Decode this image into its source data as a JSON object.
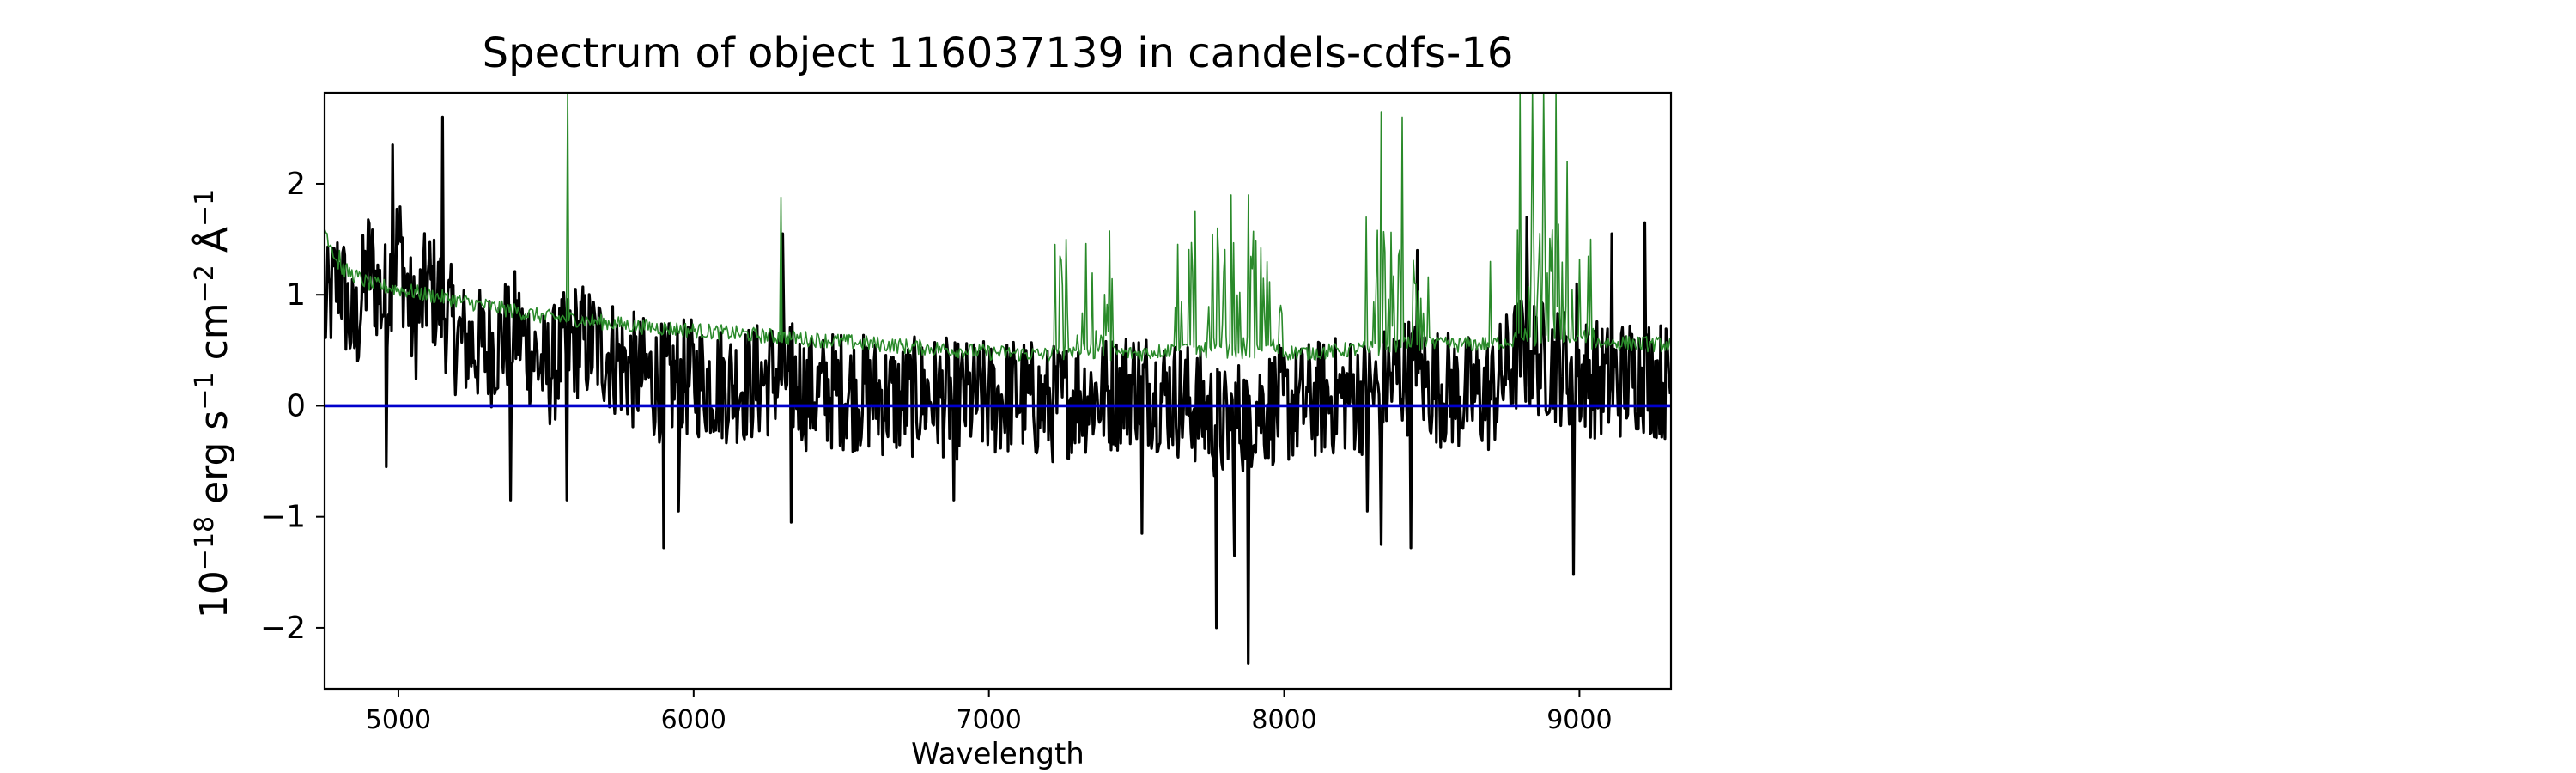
{
  "chart_data": {
    "type": "line",
    "title": "Spectrum of object 116037139 in candels-cdfs-16",
    "xlabel": "Wavelength",
    "ylabel": {
      "prefix": "10",
      "exp1": "−18",
      "erg": " erg s",
      "exp2": "−1",
      "cm": " cm",
      "exp3": "−2",
      "ang": " Å",
      "exp4": "−1"
    },
    "xlim": [
      4750,
      9310
    ],
    "ylim": [
      -2.55,
      2.82
    ],
    "xticks": [
      5000,
      6000,
      7000,
      8000,
      9000
    ],
    "yticks": [
      -2,
      -1,
      0,
      1,
      2
    ],
    "xtick_labels": [
      "5000",
      "6000",
      "7000",
      "8000",
      "9000"
    ],
    "ytick_labels": [
      "−2",
      "−1",
      "0",
      "1",
      "2"
    ],
    "grid": false,
    "series": [
      {
        "role": "flux",
        "color": "#000000",
        "points": [
          [
            4750,
            0.8
          ],
          [
            4800,
            1.2
          ],
          [
            4850,
            0.6
          ],
          [
            4900,
            1.3
          ],
          [
            4950,
            0.9
          ],
          [
            5000,
            1.5
          ],
          [
            5050,
            0.7
          ],
          [
            5100,
            1.1
          ],
          [
            5150,
            0.9
          ],
          [
            5200,
            0.6
          ],
          [
            5300,
            0.5
          ],
          [
            5400,
            0.7
          ],
          [
            5500,
            0.3
          ],
          [
            5600,
            0.6
          ],
          [
            5700,
            0.5
          ],
          [
            5800,
            0.3
          ],
          [
            5900,
            0.2
          ],
          [
            6000,
            0.25
          ],
          [
            6100,
            0.2
          ],
          [
            6200,
            0.2
          ],
          [
            6300,
            0.3
          ],
          [
            6400,
            0.1
          ],
          [
            6500,
            0.15
          ],
          [
            6600,
            0.1
          ],
          [
            6700,
            0.05
          ],
          [
            6800,
            0.1
          ],
          [
            6900,
            0.05
          ],
          [
            7000,
            0.05
          ],
          [
            7100,
            0.1
          ],
          [
            7200,
            0.0
          ],
          [
            7300,
            0.1
          ],
          [
            7400,
            0.1
          ],
          [
            7500,
            0.2
          ],
          [
            7600,
            0.1
          ],
          [
            7700,
            0.0
          ],
          [
            7800,
            -0.2
          ],
          [
            7900,
            0.0
          ],
          [
            8000,
            0.0
          ],
          [
            8100,
            0.05
          ],
          [
            8200,
            0.1
          ],
          [
            8300,
            0.1
          ],
          [
            8400,
            0.3
          ],
          [
            8500,
            0.2
          ],
          [
            8600,
            0.1
          ],
          [
            8700,
            0.1
          ],
          [
            8800,
            0.5
          ],
          [
            8900,
            0.4
          ],
          [
            9000,
            0.3
          ],
          [
            9100,
            0.2
          ],
          [
            9200,
            0.3
          ],
          [
            9310,
            0.2
          ]
        ],
        "spikes": [
          [
            4980,
            2.35
          ],
          [
            5150,
            2.6
          ],
          [
            4960,
            -0.55
          ],
          [
            5380,
            -0.85
          ],
          [
            5570,
            -0.85
          ],
          [
            5900,
            -1.28
          ],
          [
            5950,
            -0.95
          ],
          [
            6300,
            1.55
          ],
          [
            6330,
            -1.05
          ],
          [
            6880,
            -0.85
          ],
          [
            7520,
            -1.15
          ],
          [
            7770,
            -2.0
          ],
          [
            7880,
            -2.32
          ],
          [
            7830,
            -1.35
          ],
          [
            8280,
            -0.95
          ],
          [
            8330,
            -1.25
          ],
          [
            8430,
            -1.28
          ],
          [
            8450,
            1.4
          ],
          [
            8820,
            1.7
          ],
          [
            8980,
            -1.52
          ],
          [
            8990,
            1.1
          ],
          [
            9110,
            1.55
          ],
          [
            9220,
            1.65
          ],
          [
            9240,
            -0.25
          ]
        ]
      },
      {
        "role": "model",
        "color": "#2a8a2a",
        "points": [
          [
            4750,
            1.6
          ],
          [
            4800,
            1.25
          ],
          [
            4900,
            1.1
          ],
          [
            5000,
            1.05
          ],
          [
            5100,
            1.0
          ],
          [
            5200,
            0.95
          ],
          [
            5300,
            0.9
          ],
          [
            5400,
            0.85
          ],
          [
            5500,
            0.8
          ],
          [
            5600,
            0.78
          ],
          [
            5700,
            0.75
          ],
          [
            5800,
            0.72
          ],
          [
            5900,
            0.7
          ],
          [
            6000,
            0.68
          ],
          [
            6100,
            0.66
          ],
          [
            6200,
            0.64
          ],
          [
            6300,
            0.62
          ],
          [
            6400,
            0.6
          ],
          [
            6500,
            0.58
          ],
          [
            6600,
            0.56
          ],
          [
            6700,
            0.54
          ],
          [
            6800,
            0.52
          ],
          [
            6900,
            0.5
          ],
          [
            7000,
            0.48
          ],
          [
            7100,
            0.47
          ],
          [
            7200,
            0.46
          ],
          [
            7300,
            0.5
          ],
          [
            7400,
            0.48
          ],
          [
            7500,
            0.47
          ],
          [
            7600,
            0.5
          ],
          [
            7700,
            0.5
          ],
          [
            7800,
            0.5
          ],
          [
            7900,
            0.49
          ],
          [
            8000,
            0.48
          ],
          [
            8100,
            0.48
          ],
          [
            8200,
            0.5
          ],
          [
            8300,
            0.52
          ],
          [
            8400,
            0.55
          ],
          [
            8500,
            0.55
          ],
          [
            8600,
            0.55
          ],
          [
            8700,
            0.56
          ],
          [
            8800,
            0.6
          ],
          [
            8900,
            0.6
          ],
          [
            9000,
            0.58
          ],
          [
            9100,
            0.57
          ],
          [
            9200,
            0.56
          ],
          [
            9310,
            0.55
          ]
        ],
        "spikes": [
          [
            5575,
            2.85
          ],
          [
            6295,
            1.88
          ],
          [
            4800,
            1.4
          ],
          [
            7240,
            1.35
          ],
          [
            7260,
            1.5
          ],
          [
            7700,
            1.75
          ],
          [
            7820,
            1.9
          ],
          [
            7880,
            1.9
          ],
          [
            8280,
            1.7
          ],
          [
            8330,
            2.65
          ],
          [
            8400,
            2.6
          ],
          [
            8700,
            1.3
          ],
          [
            8800,
            2.82
          ],
          [
            8840,
            2.82
          ],
          [
            8880,
            2.82
          ],
          [
            8920,
            2.82
          ],
          [
            8960,
            2.2
          ],
          [
            9040,
            1.5
          ]
        ]
      },
      {
        "role": "zero",
        "color": "#0000cc",
        "points": [
          [
            4750,
            0.0
          ],
          [
            9310,
            0.0
          ]
        ]
      }
    ]
  }
}
